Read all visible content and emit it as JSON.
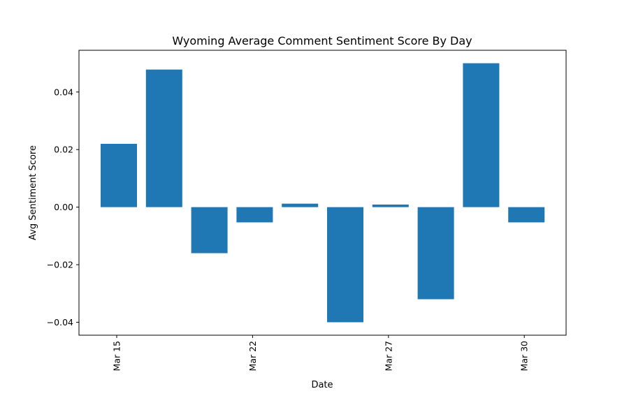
{
  "chart_data": {
    "type": "bar",
    "title": "Wyoming Average Comment Sentiment Score By Day",
    "xlabel": "Date",
    "ylabel": "Avg Sentiment Score",
    "x_ticks": [
      "Mar 15",
      "Mar 22",
      "Mar 27",
      "Mar 30"
    ],
    "y_ticks": [
      "−0.04",
      "−0.02",
      "0.00",
      "0.02",
      "0.04"
    ],
    "ylim": [
      -0.0445,
      0.0545
    ],
    "grid": false,
    "bar_color": "#1f77b4",
    "series": [
      {
        "values": [
          0.022,
          0.0478,
          -0.016,
          -0.0053,
          0.0012,
          -0.04,
          0.0009,
          -0.032,
          0.05,
          -0.0053
        ]
      }
    ]
  }
}
